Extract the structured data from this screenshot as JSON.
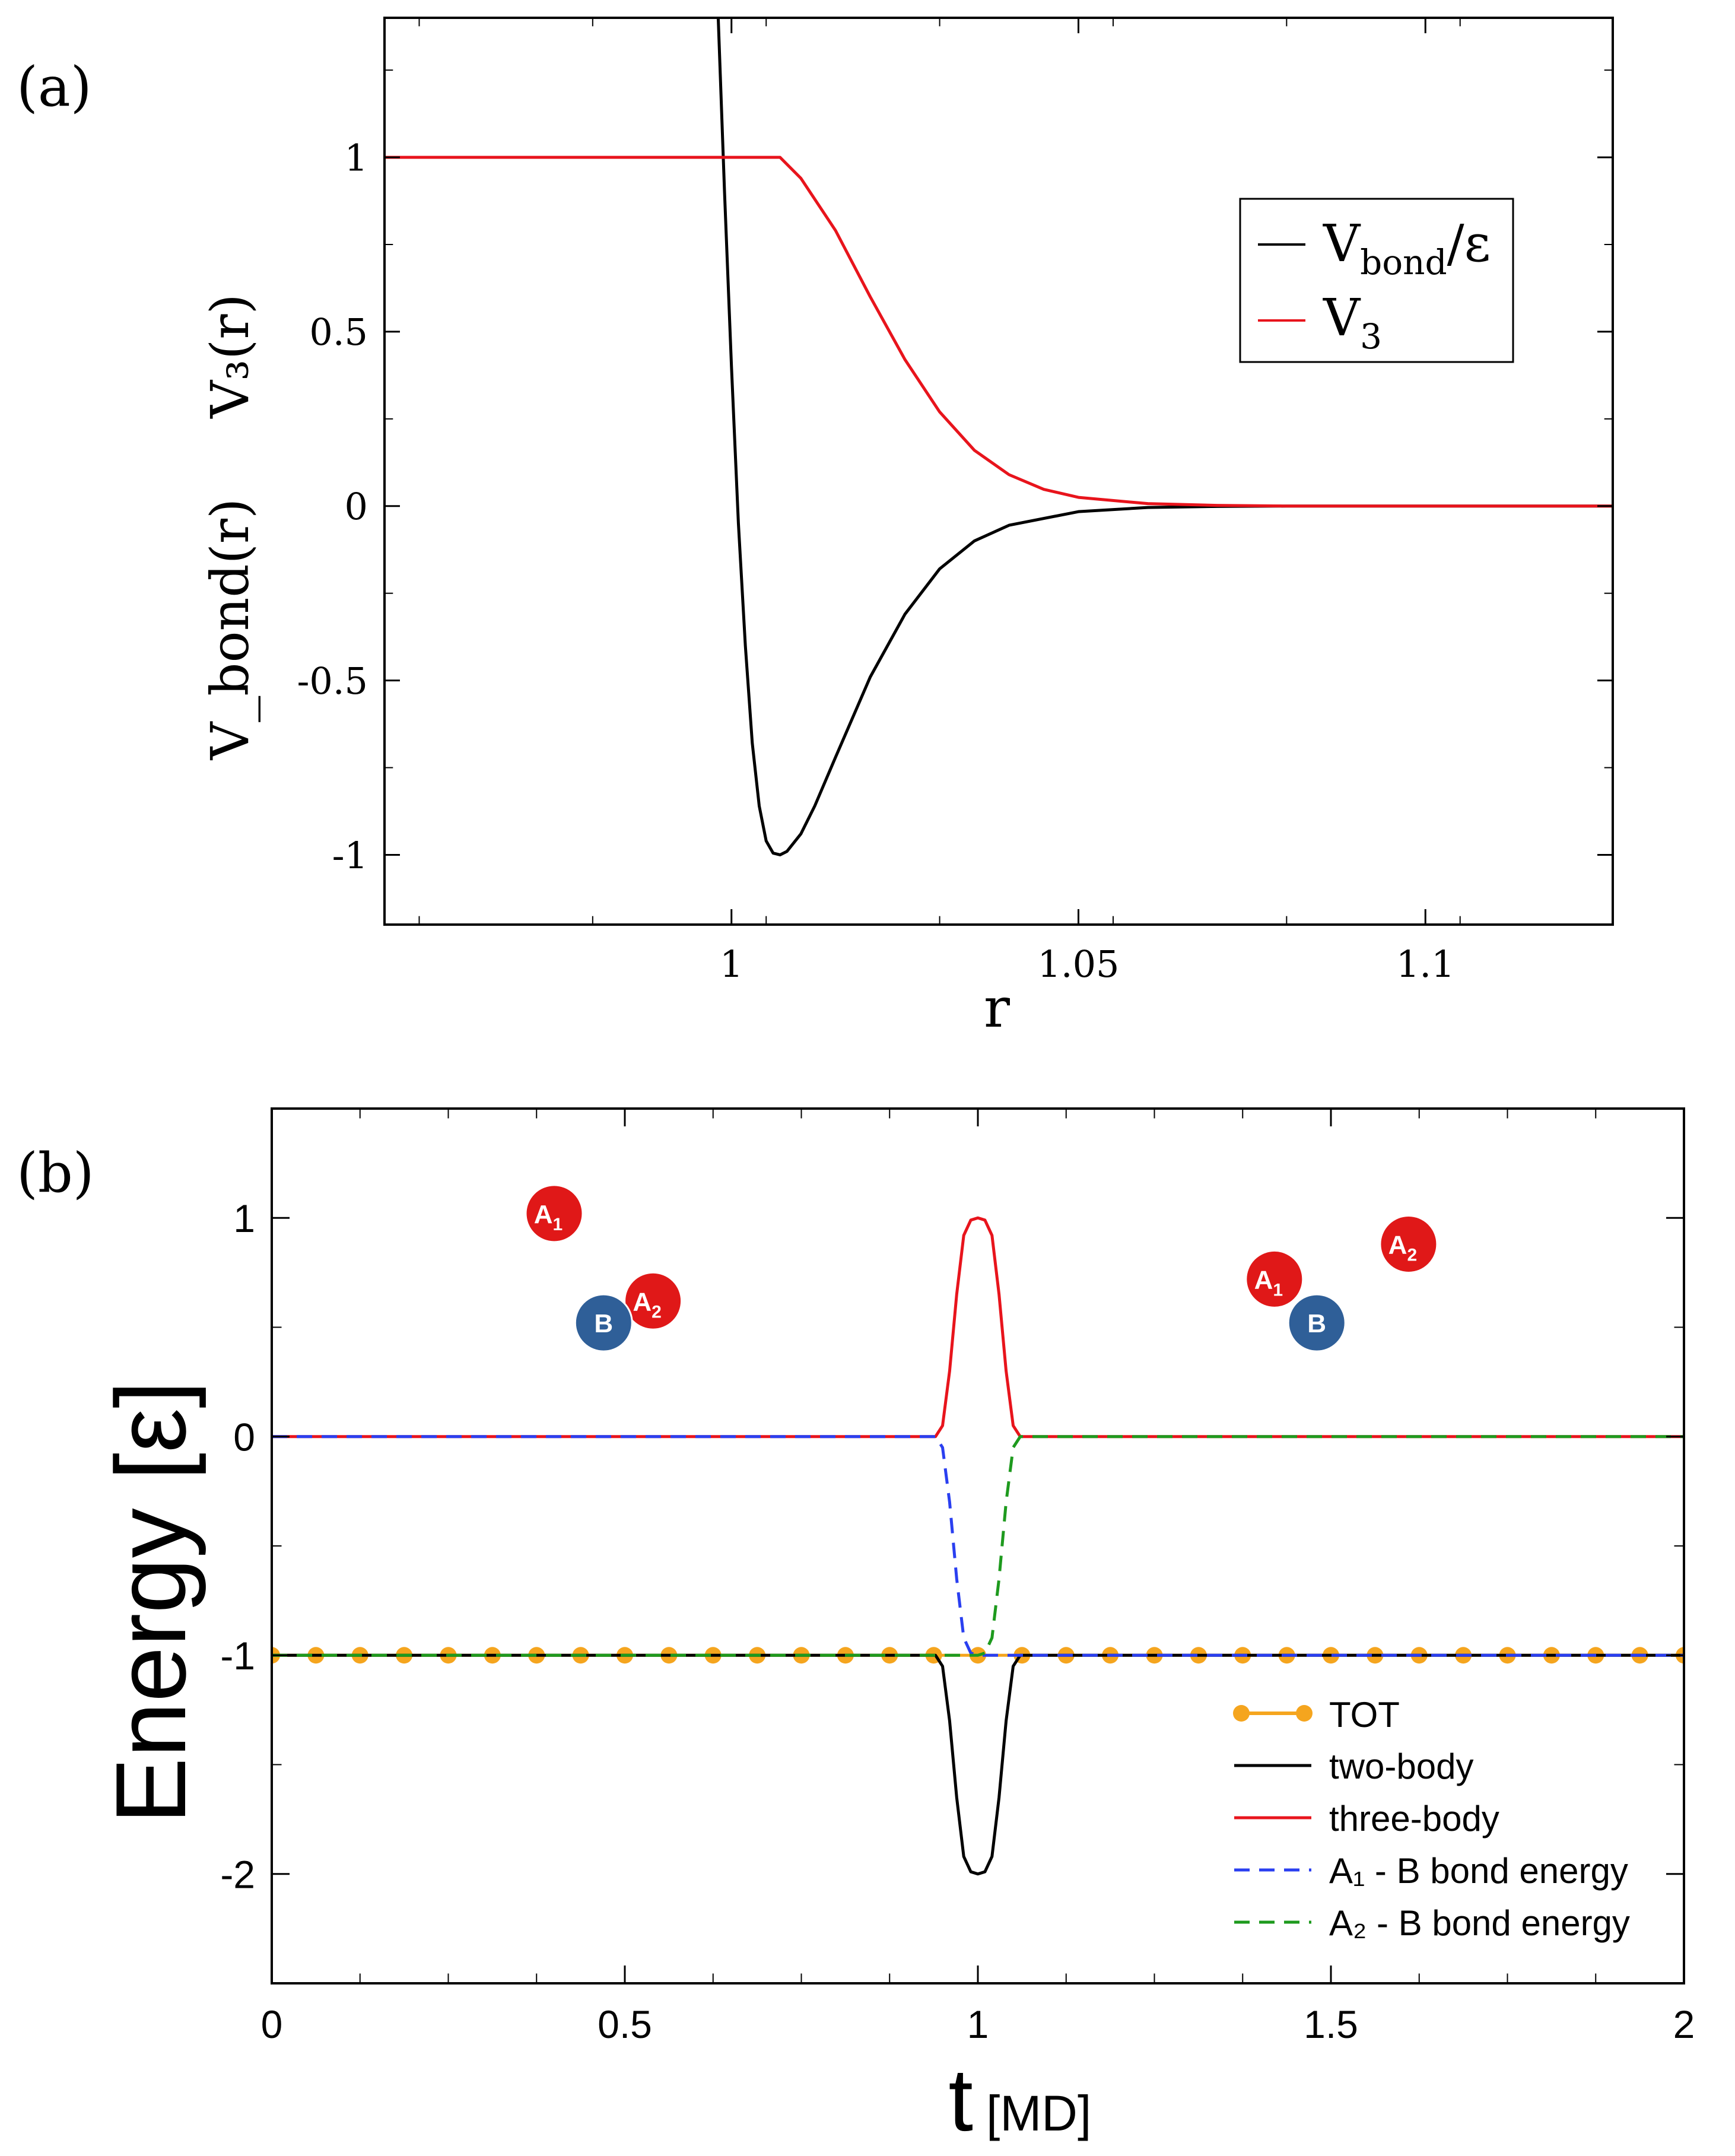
{
  "colors": {
    "black": "#000000",
    "red": "#e8141c",
    "blue": "#2a3ff0",
    "green": "#1e9a1e",
    "orange": "#f5a51e",
    "atom_red": "#e01818",
    "atom_blue": "#2f5f98"
  },
  "chart_data": [
    {
      "panel_label": "(a)",
      "type": "line",
      "xlabel": "r",
      "ylabel_top": "V₃(r)",
      "ylabel_bottom": "V_bond(r)",
      "xlim": [
        0.95,
        1.127
      ],
      "ylim": [
        -1.2,
        1.4
      ],
      "xticks": [
        1.0,
        1.05,
        1.1
      ],
      "xtick_labels": [
        "1",
        "1.05",
        "1.1"
      ],
      "yticks": [
        -1,
        -0.5,
        0,
        0.5,
        1
      ],
      "ytick_labels": [
        "-1",
        "-0.5",
        "0",
        "0.5",
        "1"
      ],
      "series": [
        {
          "name": "V_bond/ε",
          "color": "black",
          "style": "solid",
          "x": [
            0.998,
            0.999,
            1.0,
            1.001,
            1.002,
            1.003,
            1.004,
            1.005,
            1.006,
            1.007,
            1.008,
            1.01,
            1.012,
            1.015,
            1.02,
            1.025,
            1.03,
            1.035,
            1.04,
            1.05,
            1.06,
            1.07,
            1.08,
            1.1,
            1.127
          ],
          "values": [
            1.45,
            0.9,
            0.4,
            -0.05,
            -0.4,
            -0.68,
            -0.86,
            -0.96,
            -0.995,
            -1.0,
            -0.99,
            -0.94,
            -0.86,
            -0.72,
            -0.49,
            -0.31,
            -0.18,
            -0.1,
            -0.055,
            -0.016,
            -0.004,
            -0.001,
            0.0,
            0.0,
            0.0
          ]
        },
        {
          "name": "V₃",
          "color": "red",
          "style": "solid",
          "x": [
            0.95,
            1.0,
            1.007,
            1.01,
            1.015,
            1.02,
            1.025,
            1.03,
            1.035,
            1.04,
            1.045,
            1.05,
            1.06,
            1.07,
            1.08,
            1.1,
            1.127
          ],
          "values": [
            1.0,
            1.0,
            1.0,
            0.94,
            0.79,
            0.6,
            0.42,
            0.27,
            0.16,
            0.09,
            0.048,
            0.025,
            0.007,
            0.002,
            0.0,
            0.0,
            0.0
          ]
        }
      ],
      "legend": {
        "placement": "top-right",
        "entries": [
          {
            "main": "V",
            "sub": "bond",
            "tail": "/ε",
            "color": "black"
          },
          {
            "main": "V",
            "sub": "3",
            "tail": "",
            "color": "red"
          }
        ]
      }
    },
    {
      "panel_label": "(b)",
      "type": "line",
      "xlabel": "t",
      "xlabel_unit": "[MD]",
      "ylabel": "Energy  [ε]",
      "xlim": [
        0,
        2
      ],
      "ylim": [
        -2.5,
        1.5
      ],
      "xticks": [
        0,
        0.5,
        1,
        1.5,
        2
      ],
      "xtick_labels": [
        "0",
        "0.5",
        "1",
        "1.5",
        "2"
      ],
      "yticks": [
        -2,
        -1,
        0,
        1
      ],
      "ytick_labels": [
        "-2",
        "-1",
        "0",
        "1"
      ],
      "series": [
        {
          "name": "TOT",
          "color": "orange",
          "style": "dots",
          "x": [
            0.0,
            0.0625,
            0.125,
            0.1875,
            0.25,
            0.3125,
            0.375,
            0.4375,
            0.5,
            0.5625,
            0.625,
            0.6875,
            0.75,
            0.8125,
            0.875,
            0.9375,
            1.0,
            1.0625,
            1.125,
            1.1875,
            1.25,
            1.3125,
            1.375,
            1.4375,
            1.5,
            1.5625,
            1.625,
            1.6875,
            1.75,
            1.8125,
            1.875,
            1.9375,
            2.0
          ],
          "values": [
            -1,
            -1,
            -1,
            -1,
            -1,
            -1,
            -1,
            -1,
            -1,
            -1,
            -1,
            -1,
            -1,
            -1,
            -1,
            -1,
            -1,
            -1,
            -1,
            -1,
            -1,
            -1,
            -1,
            -1,
            -1,
            -1,
            -1,
            -1,
            -1,
            -1,
            -1,
            -1,
            -1
          ]
        },
        {
          "name": "two-body",
          "color": "black",
          "style": "solid",
          "x": [
            0.0,
            0.94,
            0.95,
            0.96,
            0.97,
            0.98,
            0.99,
            1.0,
            1.01,
            1.02,
            1.03,
            1.04,
            1.05,
            1.06,
            2.0
          ],
          "values": [
            -1.0,
            -1.0,
            -1.05,
            -1.3,
            -1.65,
            -1.92,
            -1.99,
            -2.0,
            -1.99,
            -1.92,
            -1.65,
            -1.3,
            -1.05,
            -1.0,
            -1.0
          ]
        },
        {
          "name": "three-body",
          "color": "red",
          "style": "solid",
          "x": [
            0.0,
            0.94,
            0.95,
            0.96,
            0.97,
            0.98,
            0.99,
            1.0,
            1.01,
            1.02,
            1.03,
            1.04,
            1.05,
            1.06,
            2.0
          ],
          "values": [
            0.0,
            0.0,
            0.05,
            0.3,
            0.65,
            0.92,
            0.99,
            1.0,
            0.99,
            0.92,
            0.65,
            0.3,
            0.05,
            0.0,
            0.0
          ]
        },
        {
          "name": "A₁ - B bond energy",
          "color": "blue",
          "style": "dashed",
          "x": [
            0.0,
            0.94,
            0.95,
            0.96,
            0.97,
            0.98,
            0.99,
            1.0,
            2.0
          ],
          "values": [
            0.0,
            0.0,
            -0.05,
            -0.3,
            -0.65,
            -0.92,
            -0.99,
            -1.0,
            -1.0
          ]
        },
        {
          "name": "A₂ - B bond energy",
          "color": "green",
          "style": "dashed",
          "x": [
            0.0,
            1.0,
            1.01,
            1.02,
            1.03,
            1.04,
            1.05,
            1.06,
            2.0
          ],
          "values": [
            -1.0,
            -1.0,
            -0.99,
            -0.92,
            -0.65,
            -0.3,
            -0.05,
            0.0,
            0.0
          ]
        }
      ],
      "legend": {
        "placement": "bottom-right",
        "entries": [
          {
            "label": "TOT",
            "color": "orange",
            "style": "dots"
          },
          {
            "label": "two-body",
            "color": "black",
            "style": "solid"
          },
          {
            "label": "three-body",
            "color": "red",
            "style": "solid"
          },
          {
            "label": "A₁ - B bond energy",
            "color": "blue",
            "style": "dashed"
          },
          {
            "label": "A₂ - B bond energy",
            "color": "green",
            "style": "dashed"
          }
        ]
      },
      "atoms": [
        {
          "main": "A",
          "sub": "1",
          "color": "atom_red",
          "t": 0.4,
          "e": 1.02
        },
        {
          "main": "A",
          "sub": "2",
          "color": "atom_red",
          "t": 0.54,
          "e": 0.62
        },
        {
          "main": "B",
          "sub": "",
          "color": "atom_blue",
          "t": 0.47,
          "e": 0.52
        },
        {
          "main": "A",
          "sub": "1",
          "color": "atom_red",
          "t": 1.42,
          "e": 0.72
        },
        {
          "main": "B",
          "sub": "",
          "color": "atom_blue",
          "t": 1.48,
          "e": 0.52
        },
        {
          "main": "A",
          "sub": "2",
          "color": "atom_red",
          "t": 1.61,
          "e": 0.88
        }
      ]
    }
  ]
}
